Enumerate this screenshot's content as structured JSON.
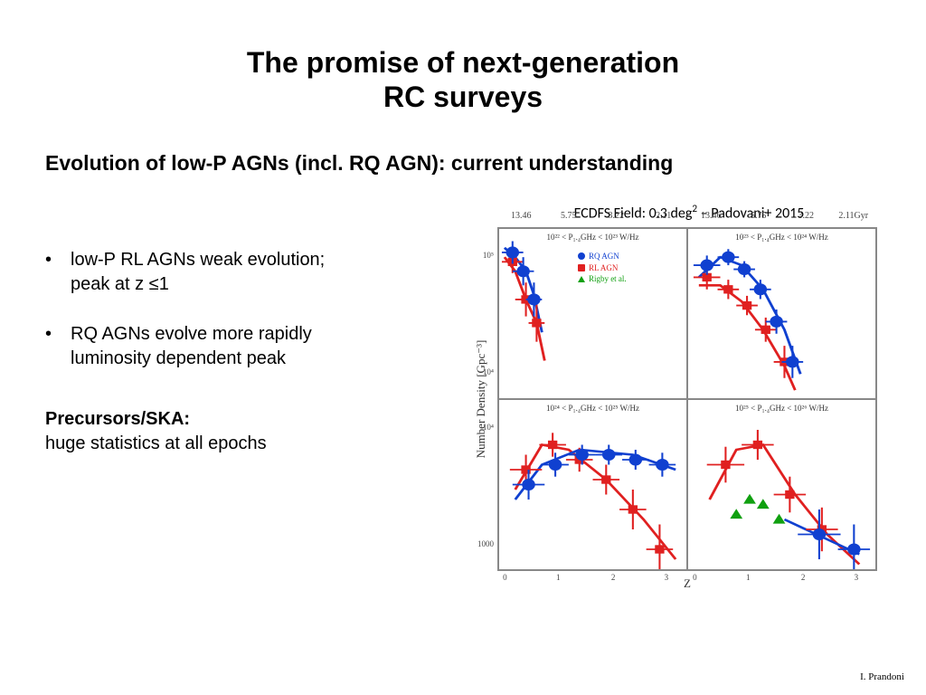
{
  "title_line1": "The promise of next-generation",
  "title_line2": "RC surveys",
  "subtitle": "Evolution of  low-P AGNs (incl. RQ AGN): current understanding",
  "bullets": [
    {
      "line1": "low-P RL AGNs weak evolution;",
      "line2": "peak at z ≤1"
    },
    {
      "line1": "RQ AGNs evolve more rapidly",
      "line2": "luminosity dependent peak"
    }
  ],
  "precursors_heading": "Precursors/SKA:",
  "precursors_body": "huge statistics at all epochs",
  "figure_caption_prefix": "ECDFS Field: 0.3 deg",
  "figure_caption_exp": "2",
  "figure_caption_suffix": " – Padovani+ 2015",
  "footer_credit": "I. Prandoni",
  "chart": {
    "ylabel": "Number Density [Gpc⁻³]",
    "xlabel": "Z",
    "top_axis_labels": [
      "13.46",
      "5.75",
      "3.22",
      "2.11",
      "13.46",
      "5.75",
      "3.22",
      "2.11Gyr"
    ],
    "xlim": [
      0,
      3.5
    ],
    "xtick_labels": [
      "0",
      "1",
      "2",
      "3"
    ],
    "xtick_positions_pct": [
      4,
      32,
      61,
      89
    ],
    "ytick_labels_left": [
      "10⁵",
      "10⁴",
      "10⁴",
      "1000"
    ],
    "ytick_positions_left_pct": [
      8,
      42,
      58,
      92
    ],
    "colors": {
      "rq": "#1040d0",
      "rl": "#e02020",
      "rigby": "#10a010",
      "axis": "#888888",
      "text": "#333333",
      "background": "#ffffff"
    },
    "marker_size": 5,
    "line_width": 1.4,
    "errorbar_width": 1,
    "legend": {
      "items": [
        {
          "label": "RQ AGN",
          "color": "#1040d0",
          "marker": "circle"
        },
        {
          "label": "RL AGN",
          "color": "#e02020",
          "marker": "square"
        },
        {
          "label": "Rigby et al.",
          "color": "#10a010",
          "marker": "triangle"
        }
      ]
    },
    "panels": [
      {
        "title": "10²² < P₁.₄GHz < 10²³ W/Hz",
        "ylim_log": [
          3.5,
          5.3
        ],
        "rq": [
          {
            "z": 0.25,
            "y": 5.05,
            "xerr": 0.2,
            "yerr": 0.12
          },
          {
            "z": 0.45,
            "y": 4.85,
            "xerr": 0.2,
            "yerr": 0.15
          },
          {
            "z": 0.65,
            "y": 4.55,
            "xerr": 0.15,
            "yerr": 0.18
          }
        ],
        "rl": [
          {
            "z": 0.25,
            "y": 4.95,
            "xerr": 0.2,
            "yerr": 0.12
          },
          {
            "z": 0.5,
            "y": 4.55,
            "xerr": 0.2,
            "yerr": 0.18
          },
          {
            "z": 0.7,
            "y": 4.3,
            "xerr": 0.15,
            "yerr": 0.2
          }
        ],
        "rq_curve": [
          [
            0.1,
            5.1
          ],
          [
            0.3,
            5.0
          ],
          [
            0.5,
            4.85
          ],
          [
            0.65,
            4.6
          ],
          [
            0.8,
            4.2
          ]
        ],
        "rl_curve": [
          [
            0.1,
            5.0
          ],
          [
            0.3,
            4.85
          ],
          [
            0.5,
            4.55
          ],
          [
            0.7,
            4.3
          ],
          [
            0.85,
            3.9
          ]
        ]
      },
      {
        "title": "10²³ < P₁.₄GHz < 10²⁴ W/Hz",
        "ylim_log": [
          3.2,
          5.3
        ],
        "rq": [
          {
            "z": 0.35,
            "y": 4.85,
            "xerr": 0.25,
            "yerr": 0.12
          },
          {
            "z": 0.75,
            "y": 4.95,
            "xerr": 0.2,
            "yerr": 0.1
          },
          {
            "z": 1.05,
            "y": 4.8,
            "xerr": 0.2,
            "yerr": 0.1
          },
          {
            "z": 1.35,
            "y": 4.55,
            "xerr": 0.2,
            "yerr": 0.12
          },
          {
            "z": 1.65,
            "y": 4.15,
            "xerr": 0.2,
            "yerr": 0.15
          },
          {
            "z": 1.95,
            "y": 3.65,
            "xerr": 0.2,
            "yerr": 0.2
          }
        ],
        "rl": [
          {
            "z": 0.35,
            "y": 4.7,
            "xerr": 0.25,
            "yerr": 0.15
          },
          {
            "z": 0.75,
            "y": 4.55,
            "xerr": 0.2,
            "yerr": 0.12
          },
          {
            "z": 1.1,
            "y": 4.35,
            "xerr": 0.2,
            "yerr": 0.12
          },
          {
            "z": 1.45,
            "y": 4.05,
            "xerr": 0.2,
            "yerr": 0.15
          },
          {
            "z": 1.8,
            "y": 3.65,
            "xerr": 0.2,
            "yerr": 0.2
          }
        ],
        "rq_curve": [
          [
            0.2,
            4.7
          ],
          [
            0.6,
            4.95
          ],
          [
            1.0,
            4.85
          ],
          [
            1.4,
            4.55
          ],
          [
            1.8,
            4.05
          ],
          [
            2.1,
            3.5
          ]
        ],
        "rl_curve": [
          [
            0.2,
            4.6
          ],
          [
            0.6,
            4.6
          ],
          [
            1.0,
            4.4
          ],
          [
            1.4,
            4.05
          ],
          [
            1.8,
            3.6
          ],
          [
            2.0,
            3.3
          ]
        ]
      },
      {
        "title": "10²⁴ < P₁.₄GHz < 10²⁵ W/Hz",
        "ylim_log": [
          2.9,
          4.6
        ],
        "rq": [
          {
            "z": 0.55,
            "y": 3.75,
            "xerr": 0.3,
            "yerr": 0.15
          },
          {
            "z": 1.05,
            "y": 3.95,
            "xerr": 0.25,
            "yerr": 0.12
          },
          {
            "z": 1.55,
            "y": 4.05,
            "xerr": 0.25,
            "yerr": 0.1
          },
          {
            "z": 2.05,
            "y": 4.05,
            "xerr": 0.25,
            "yerr": 0.1
          },
          {
            "z": 2.55,
            "y": 4.0,
            "xerr": 0.25,
            "yerr": 0.1
          },
          {
            "z": 3.05,
            "y": 3.95,
            "xerr": 0.25,
            "yerr": 0.12
          }
        ],
        "rl": [
          {
            "z": 0.5,
            "y": 3.9,
            "xerr": 0.3,
            "yerr": 0.15
          },
          {
            "z": 1.0,
            "y": 4.15,
            "xerr": 0.25,
            "yerr": 0.12
          },
          {
            "z": 1.5,
            "y": 4.0,
            "xerr": 0.25,
            "yerr": 0.12
          },
          {
            "z": 2.0,
            "y": 3.8,
            "xerr": 0.25,
            "yerr": 0.15
          },
          {
            "z": 2.5,
            "y": 3.5,
            "xerr": 0.25,
            "yerr": 0.2
          },
          {
            "z": 3.0,
            "y": 3.1,
            "xerr": 0.25,
            "yerr": 0.25
          }
        ],
        "rq_curve": [
          [
            0.3,
            3.6
          ],
          [
            0.8,
            3.95
          ],
          [
            1.5,
            4.1
          ],
          [
            2.5,
            4.05
          ],
          [
            3.3,
            3.9
          ]
        ],
        "rl_curve": [
          [
            0.3,
            3.7
          ],
          [
            0.8,
            4.15
          ],
          [
            1.3,
            4.1
          ],
          [
            2.0,
            3.8
          ],
          [
            2.7,
            3.4
          ],
          [
            3.3,
            3.0
          ]
        ]
      },
      {
        "title": "10²⁵ < P₁.₄GHz < 10²⁶ W/Hz",
        "ylim_log": [
          2.8,
          4.5
        ],
        "rq": [
          {
            "z": 2.45,
            "y": 3.15,
            "xerr": 0.4,
            "yerr": 0.25
          },
          {
            "z": 3.1,
            "y": 3.0,
            "xerr": 0.3,
            "yerr": 0.25
          }
        ],
        "rl": [
          {
            "z": 0.7,
            "y": 3.85,
            "xerr": 0.35,
            "yerr": 0.18
          },
          {
            "z": 1.3,
            "y": 4.05,
            "xerr": 0.3,
            "yerr": 0.15
          },
          {
            "z": 1.9,
            "y": 3.55,
            "xerr": 0.3,
            "yerr": 0.18
          },
          {
            "z": 2.5,
            "y": 3.2,
            "xerr": 0.3,
            "yerr": 0.22
          }
        ],
        "rigby": [
          {
            "z": 0.9,
            "y": 3.35,
            "xerr": 0,
            "yerr": 0
          },
          {
            "z": 1.15,
            "y": 3.5,
            "xerr": 0,
            "yerr": 0
          },
          {
            "z": 1.4,
            "y": 3.45,
            "xerr": 0,
            "yerr": 0
          },
          {
            "z": 1.7,
            "y": 3.3,
            "xerr": 0,
            "yerr": 0
          }
        ],
        "rq_curve": [
          [
            1.8,
            3.3
          ],
          [
            2.4,
            3.15
          ],
          [
            3.2,
            2.95
          ]
        ],
        "rl_curve": [
          [
            0.4,
            3.5
          ],
          [
            0.9,
            4.0
          ],
          [
            1.4,
            4.05
          ],
          [
            2.0,
            3.55
          ],
          [
            2.6,
            3.15
          ],
          [
            3.2,
            2.85
          ]
        ]
      }
    ]
  }
}
